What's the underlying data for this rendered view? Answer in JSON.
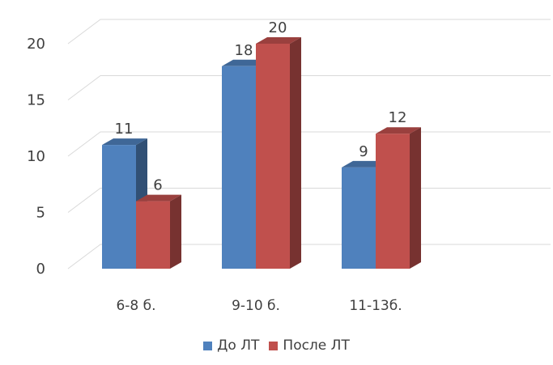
{
  "chart_data": {
    "type": "bar",
    "style": "3d-clustered-column",
    "categories": [
      "6-8 б.",
      "9-10 б.",
      "11-13б."
    ],
    "series": [
      {
        "name": "До ЛТ",
        "values": [
          11,
          18,
          9
        ],
        "color": "#4F81BD"
      },
      {
        "name": "После ЛТ",
        "values": [
          6,
          20,
          12
        ],
        "color": "#C0504D"
      }
    ],
    "y_ticks": [
      "0",
      "5",
      "10",
      "15",
      "20"
    ],
    "ylim": [
      0,
      20
    ],
    "grid": true,
    "legend": "bottom",
    "data_labels": true
  }
}
